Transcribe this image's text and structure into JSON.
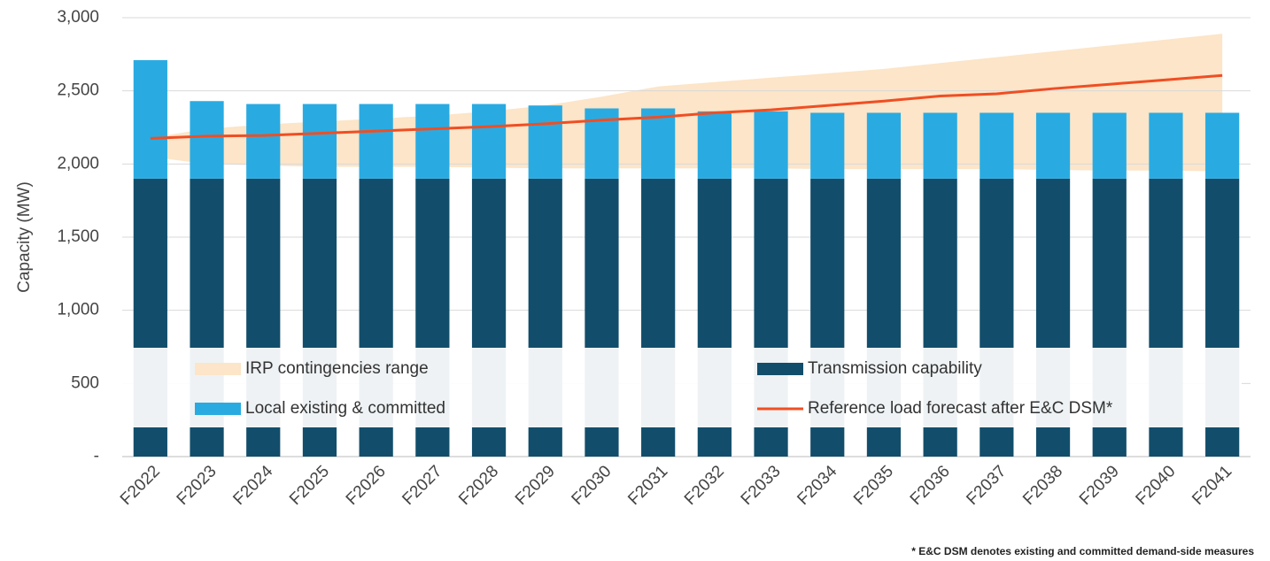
{
  "chart_data": {
    "type": "bar",
    "y_label": "Capacity (MW)",
    "footnote": "* E&C DSM denotes existing and committed demand-side measures",
    "categories": [
      "F2022",
      "F2023",
      "F2024",
      "F2025",
      "F2026",
      "F2027",
      "F2028",
      "F2029",
      "F2030",
      "F2031",
      "F2032",
      "F2033",
      "F2034",
      "F2035",
      "F2036",
      "F2037",
      "F2038",
      "F2039",
      "F2040",
      "F2041"
    ],
    "ylim": [
      0,
      3000
    ],
    "yticks": [
      {
        "value": 0,
        "label": "-"
      },
      500,
      {
        "value": 1000,
        "label": "1,000"
      },
      {
        "value": 1500,
        "label": "1,500"
      },
      {
        "value": 2000,
        "label": "2,000"
      },
      {
        "value": 2500,
        "label": "2,500"
      },
      {
        "value": 3000,
        "label": "3,000"
      }
    ],
    "grid": true,
    "range": {
      "name": "IRP contingencies range",
      "color": "#fce5c8",
      "upper": [
        2180,
        2240,
        2270,
        2290,
        2310,
        2330,
        2360,
        2400,
        2460,
        2530,
        2560,
        2590,
        2620,
        2650,
        2690,
        2730,
        2770,
        2810,
        2850,
        2890
      ],
      "lower": [
        2050,
        2000,
        1990,
        1980,
        1980,
        1980,
        1975,
        1970,
        1970,
        1970,
        1970,
        1970,
        1965,
        1965,
        1965,
        1965,
        1960,
        1955,
        1955,
        1950
      ]
    },
    "series": [
      {
        "name": "Transmission capability",
        "color": "#124e6b",
        "values": [
          1900,
          1900,
          1900,
          1900,
          1900,
          1900,
          1900,
          1900,
          1900,
          1900,
          1900,
          1900,
          1900,
          1900,
          1900,
          1900,
          1900,
          1900,
          1900,
          1900
        ]
      },
      {
        "name": "Local existing & committed",
        "color": "#29abe2",
        "values": [
          810,
          530,
          510,
          510,
          510,
          510,
          510,
          500,
          480,
          480,
          460,
          460,
          450,
          450,
          450,
          450,
          450,
          450,
          450,
          450
        ]
      }
    ],
    "line": {
      "name": "Reference load forecast after E&C DSM*",
      "color": "#f04e23",
      "values": [
        2175,
        2190,
        2195,
        2210,
        2225,
        2240,
        2255,
        2275,
        2300,
        2320,
        2350,
        2370,
        2400,
        2430,
        2465,
        2480,
        2515,
        2545,
        2575,
        2605
      ]
    }
  }
}
